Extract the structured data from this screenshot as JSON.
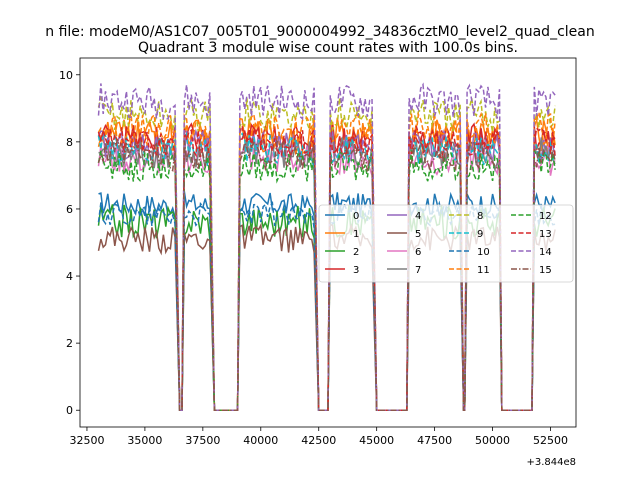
{
  "chart_data": {
    "type": "line",
    "suptitle": "n file: modeM0/AS1C07_005T01_9000004992_34836cztM0_level2_quad_clean",
    "title": "Quadrant 3 module wise count rates with 100.0s bins.",
    "xlabel": "",
    "ylabel": "",
    "x_offset_label": "+3.844e8",
    "xlim": [
      32200,
      53600
    ],
    "ylim": [
      -0.5,
      10.5
    ],
    "xticks": [
      32500,
      35000,
      37500,
      40000,
      42500,
      45000,
      47500,
      50000,
      52500
    ],
    "xtick_labels": [
      "32500",
      "35000",
      "37500",
      "40000",
      "42500",
      "45000",
      "47500",
      "50000",
      "52500"
    ],
    "yticks": [
      0,
      2,
      4,
      6,
      8,
      10
    ],
    "ytick_labels": [
      "0",
      "2",
      "4",
      "6",
      "8",
      "10"
    ],
    "legend_position": "center-right",
    "on_segments": [
      [
        33000,
        36300
      ],
      [
        36700,
        37800
      ],
      [
        39100,
        42300
      ],
      [
        43000,
        44800
      ],
      [
        46400,
        48600
      ],
      [
        48900,
        50300
      ],
      [
        51800,
        52700
      ]
    ],
    "off_segments": [
      [
        36500,
        36600
      ],
      [
        38000,
        39000
      ],
      [
        42500,
        42900
      ],
      [
        45000,
        46300
      ],
      [
        48750,
        48800
      ],
      [
        50400,
        51700
      ]
    ],
    "series": [
      {
        "name": "0",
        "color": "#1f77b4",
        "dash": "solid",
        "level": 6.0,
        "amp": 0.35
      },
      {
        "name": "1",
        "color": "#ff7f0e",
        "dash": "solid",
        "level": 8.0,
        "amp": 0.5
      },
      {
        "name": "2",
        "color": "#2ca02c",
        "dash": "solid",
        "level": 5.5,
        "amp": 0.5
      },
      {
        "name": "3",
        "color": "#d62728",
        "dash": "solid",
        "level": 7.9,
        "amp": 0.45
      },
      {
        "name": "4",
        "color": "#9467bd",
        "dash": "solid",
        "level": 7.7,
        "amp": 0.45
      },
      {
        "name": "5",
        "color": "#8c564b",
        "dash": "solid",
        "level": 5.0,
        "amp": 0.4
      },
      {
        "name": "6",
        "color": "#e377c2",
        "dash": "solid",
        "level": 7.3,
        "amp": 0.45
      },
      {
        "name": "7",
        "color": "#7f7f7f",
        "dash": "solid",
        "level": 7.5,
        "amp": 0.45
      },
      {
        "name": "8",
        "color": "#bcbd22",
        "dash": "dashed",
        "level": 8.6,
        "amp": 0.5
      },
      {
        "name": "9",
        "color": "#17becf",
        "dash": "dashed",
        "level": 7.6,
        "amp": 0.45
      },
      {
        "name": "10",
        "color": "#1f77b4",
        "dash": "dashed",
        "level": 5.7,
        "amp": 0.35
      },
      {
        "name": "11",
        "color": "#ff7f0e",
        "dash": "dashed",
        "level": 8.2,
        "amp": 0.5
      },
      {
        "name": "12",
        "color": "#2ca02c",
        "dash": "dashed",
        "level": 7.1,
        "amp": 0.45
      },
      {
        "name": "13",
        "color": "#d62728",
        "dash": "dashed",
        "level": 7.8,
        "amp": 0.45
      },
      {
        "name": "14",
        "color": "#9467bd",
        "dash": "dashed",
        "level": 9.0,
        "amp": 0.5
      },
      {
        "name": "15",
        "color": "#8c564b",
        "dash": "dashdot",
        "level": 7.4,
        "amp": 0.45
      }
    ]
  }
}
